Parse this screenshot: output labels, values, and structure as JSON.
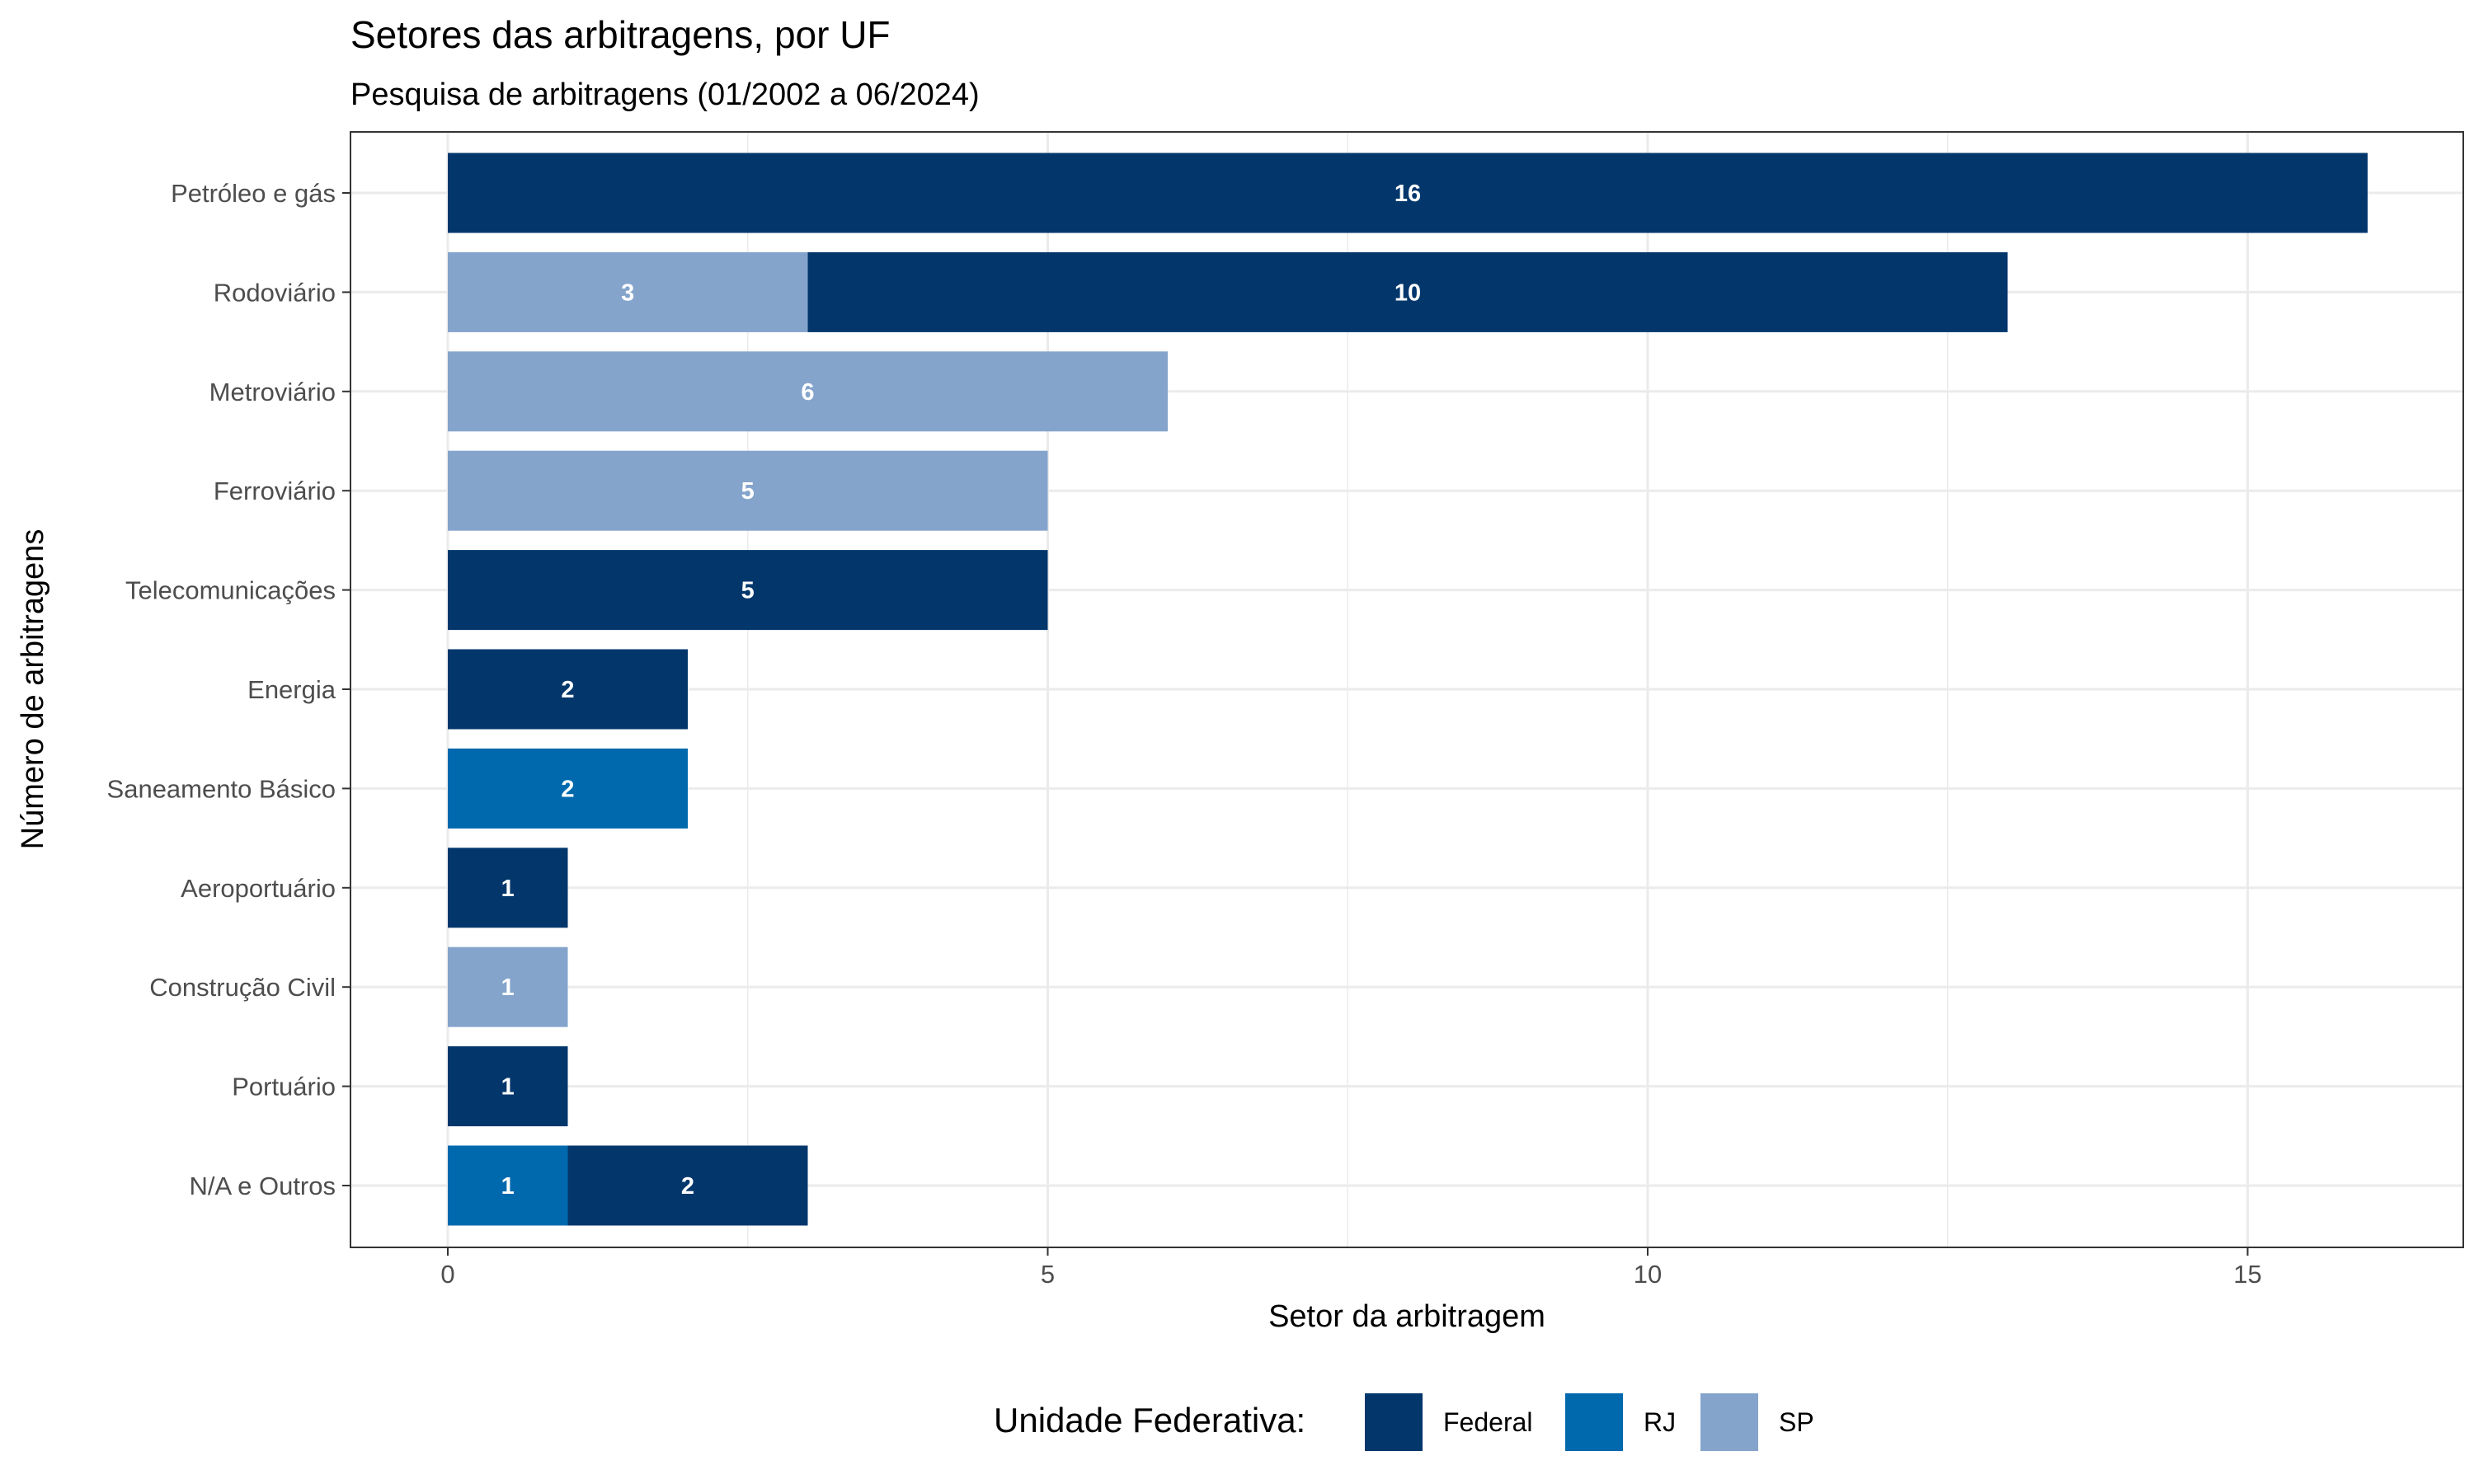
{
  "chart_data": {
    "type": "bar",
    "orientation": "horizontal",
    "stacked": true,
    "title": "Setores das arbitragens, por UF",
    "subtitle": "Pesquisa de arbitragens (01/2002 a 06/2024)",
    "xlabel": "Setor da arbitragem",
    "ylabel": "Número de arbitragens",
    "xlim": [
      0,
      16.8
    ],
    "x_ticks": [
      0,
      5,
      10,
      15
    ],
    "grid": true,
    "legend_title": "Unidade Federativa:",
    "legend_position": "bottom",
    "categories": [
      "Petróleo e gás",
      "Rodoviário",
      "Metroviário",
      "Ferroviário",
      "Telecomunicações",
      "Energia",
      "Saneamento Básico",
      "Aeroportuário",
      "Construção Civil",
      "Portuário",
      "N/A e Outros"
    ],
    "stack_order": [
      "SP",
      "RJ",
      "Federal"
    ],
    "series": [
      {
        "name": "Federal",
        "color": "#03376c",
        "values": [
          16,
          10,
          0,
          0,
          5,
          2,
          0,
          1,
          0,
          1,
          2
        ]
      },
      {
        "name": "RJ",
        "color": "#0069ad",
        "values": [
          0,
          0,
          0,
          0,
          0,
          0,
          2,
          0,
          0,
          0,
          1
        ]
      },
      {
        "name": "SP",
        "color": "#84a4cc",
        "values": [
          0,
          3,
          6,
          5,
          0,
          0,
          0,
          0,
          1,
          0,
          0
        ]
      }
    ]
  }
}
